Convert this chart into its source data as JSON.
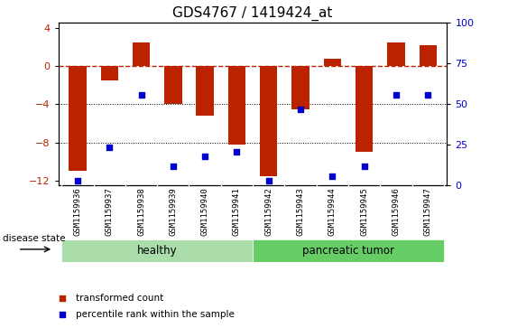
{
  "title": "GDS4767 / 1419424_at",
  "samples": [
    "GSM1159936",
    "GSM1159937",
    "GSM1159938",
    "GSM1159939",
    "GSM1159940",
    "GSM1159941",
    "GSM1159942",
    "GSM1159943",
    "GSM1159944",
    "GSM1159945",
    "GSM1159946",
    "GSM1159947"
  ],
  "bar_values": [
    -11.0,
    -1.5,
    2.5,
    -4.0,
    -5.2,
    -8.2,
    -11.5,
    -4.5,
    0.8,
    -9.0,
    2.5,
    2.2
  ],
  "dot_values_left": [
    -12.0,
    -8.5,
    -3.0,
    -10.5,
    -9.5,
    -9.0,
    -12.0,
    -4.5,
    -11.5,
    -10.5,
    -3.0,
    -3.0
  ],
  "ylim_left": [
    -12.5,
    4.5
  ],
  "ylim_right": [
    0,
    100
  ],
  "yticks_left": [
    -12,
    -8,
    -4,
    0,
    4
  ],
  "yticks_right": [
    0,
    25,
    50,
    75,
    100
  ],
  "bar_color": "#bb2200",
  "dot_color": "#0000cc",
  "hline_y": 0,
  "dotted_lines": [
    -4,
    -8
  ],
  "groups": [
    {
      "label": "healthy",
      "start": 0,
      "end": 5,
      "color": "#aaddaa"
    },
    {
      "label": "pancreatic tumor",
      "start": 6,
      "end": 11,
      "color": "#66cc66"
    }
  ],
  "disease_state_label": "disease state",
  "legend_items": [
    {
      "label": "transformed count",
      "color": "#bb2200"
    },
    {
      "label": "percentile rank within the sample",
      "color": "#0000cc"
    }
  ],
  "tick_label_fontsize": 6.5,
  "title_fontsize": 11,
  "xlabel_color": "#333333",
  "label_bg_color": "#cccccc"
}
